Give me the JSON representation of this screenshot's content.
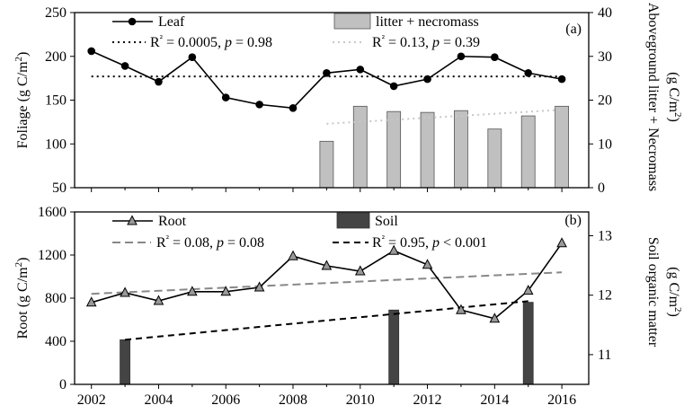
{
  "chart_data": [
    {
      "panel_label": "(a)",
      "type": "line",
      "bar_type": "bar",
      "ylabel": "Foliage (g C/m²)",
      "ylabel_right": "Aboveground litter + Necromass (g C/m²)",
      "ylim": [
        50,
        250
      ],
      "yticks": [
        50,
        100,
        150,
        200,
        250
      ],
      "ylim_right": [
        0,
        40
      ],
      "yticks_right": [
        0,
        10,
        20,
        30,
        40
      ],
      "xlim": [
        2001.5,
        2016.8
      ],
      "line_series": {
        "name": "Leaf",
        "x": [
          2002,
          2003,
          2004,
          2005,
          2006,
          2007,
          2008,
          2009,
          2010,
          2011,
          2012,
          2013,
          2014,
          2015,
          2016
        ],
        "values": [
          206,
          189,
          171,
          199,
          153,
          145,
          141,
          181,
          185,
          166,
          174,
          200,
          199,
          181,
          174
        ]
      },
      "bar_series": {
        "name": "litter + necromass",
        "x": [
          2009,
          2010,
          2011,
          2012,
          2013,
          2014,
          2015,
          2016
        ],
        "values": [
          10.6,
          18.6,
          17.4,
          17.2,
          17.6,
          13.4,
          16.4,
          18.6
        ]
      },
      "line_trend": {
        "label": "R² = 0.0005, p = 0.98",
        "x": [
          2002,
          2016
        ],
        "values": [
          177,
          177
        ]
      },
      "bar_trend": {
        "label": "R² = 0.13, p = 0.39",
        "x": [
          2009,
          2016
        ],
        "values": [
          14.6,
          17.8
        ]
      }
    },
    {
      "panel_label": "(b)",
      "type": "line",
      "bar_type": "bar",
      "ylabel": "Root (g C/m²)",
      "ylabel_right": "Soil organic matter (g C/m²)",
      "ylim": [
        0,
        1600
      ],
      "yticks": [
        0,
        400,
        800,
        1200,
        1600
      ],
      "ylim_right": [
        10.5,
        13.4
      ],
      "yticks_right": [
        11,
        12,
        13
      ],
      "xlim": [
        2001.5,
        2016.8
      ],
      "xticks": [
        2002,
        2004,
        2006,
        2008,
        2010,
        2012,
        2014,
        2016
      ],
      "line_series": {
        "name": "Root",
        "x": [
          2002,
          2003,
          2004,
          2005,
          2006,
          2007,
          2008,
          2009,
          2010,
          2011,
          2012,
          2013,
          2014,
          2015,
          2016
        ],
        "values": [
          760,
          850,
          775,
          860,
          860,
          900,
          1190,
          1100,
          1050,
          1240,
          1110,
          690,
          610,
          870,
          1310
        ]
      },
      "bar_series": {
        "name": "Soil",
        "x": [
          2003,
          2011,
          2015
        ],
        "values": [
          11.25,
          11.75,
          11.88
        ]
      },
      "line_trend": {
        "label": "R² = 0.08, p = 0.08",
        "x": [
          2002,
          2016
        ],
        "values": [
          840,
          1040
        ]
      },
      "bar_trend": {
        "label": "R² = 0.95, p < 0.001",
        "x": [
          2003,
          2015
        ],
        "values": [
          11.25,
          11.9
        ]
      }
    }
  ]
}
